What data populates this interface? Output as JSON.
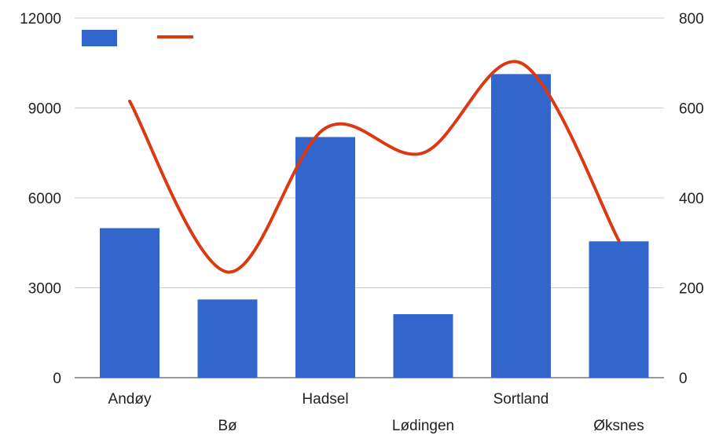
{
  "chart_data": {
    "type": "bar+line",
    "categories": [
      "Andøy",
      "Bø",
      "Hadsel",
      "Lødingen",
      "Sortland",
      "Øksnes"
    ],
    "series": [
      {
        "type": "bar",
        "axis": "left",
        "color": "#3366cc",
        "values": [
          4990,
          2610,
          8030,
          2120,
          10130,
          4550
        ]
      },
      {
        "type": "line",
        "axis": "right",
        "color": "#dc3912",
        "smooth": true,
        "values": [
          615,
          235,
          555,
          500,
          700,
          305
        ]
      }
    ],
    "y_left": {
      "min": 0,
      "max": 12000,
      "ticks": [
        "0",
        "3000",
        "6000",
        "9000",
        "12000"
      ]
    },
    "y_right": {
      "min": 0,
      "max": 800,
      "ticks": [
        "0",
        "200",
        "400",
        "600",
        "800"
      ]
    },
    "grid": true,
    "legend": "top-left",
    "title": "",
    "xlabel": "",
    "ylabel": ""
  }
}
